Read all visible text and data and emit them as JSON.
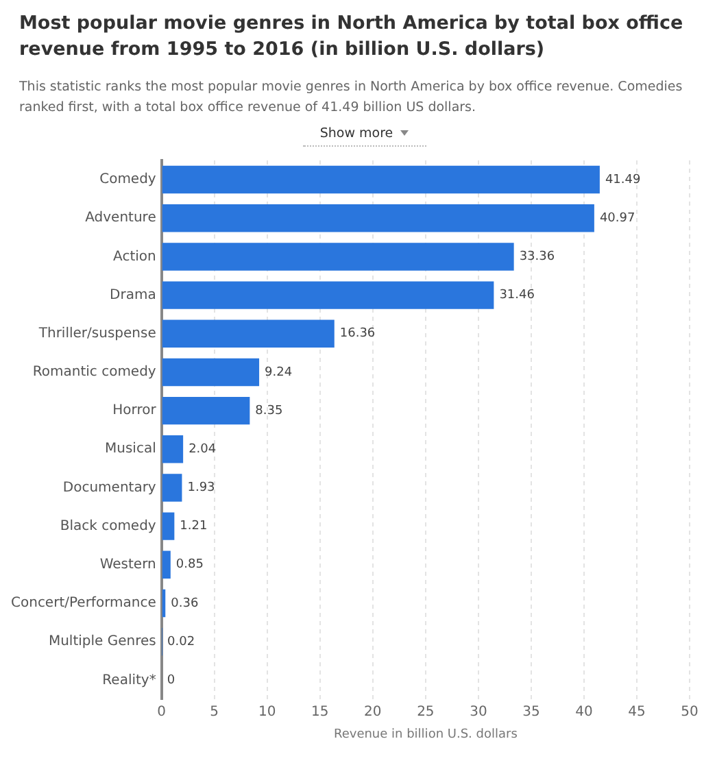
{
  "chart_data": {
    "type": "bar",
    "orientation": "horizontal",
    "title": "Most popular movie genres in North America by total box office revenue from 1995 to 2016 (in billion U.S. dollars)",
    "subtitle": "This statistic ranks the most popular movie genres in North America by box office revenue. Comedies ranked first, with a total box office revenue of 41.49 billion US dollars.",
    "annotations": [
      "Show more"
    ],
    "categories": [
      "Comedy",
      "Adventure",
      "Action",
      "Drama",
      "Thriller/suspense",
      "Romantic comedy",
      "Horror",
      "Musical",
      "Documentary",
      "Black comedy",
      "Western",
      "Concert/Performance",
      "Multiple Genres",
      "Reality*"
    ],
    "values": [
      41.49,
      40.97,
      33.36,
      31.46,
      16.36,
      9.24,
      8.35,
      2.04,
      1.93,
      1.21,
      0.85,
      0.36,
      0.02,
      0
    ],
    "color": "#2a76dd",
    "xlabel": "Revenue in billion U.S. dollars",
    "xlim": [
      0,
      50
    ],
    "xticks": [
      0,
      5,
      10,
      15,
      20,
      25,
      30,
      35,
      40,
      45,
      50
    ],
    "grid": "x",
    "data_labels": true,
    "legend": false
  }
}
